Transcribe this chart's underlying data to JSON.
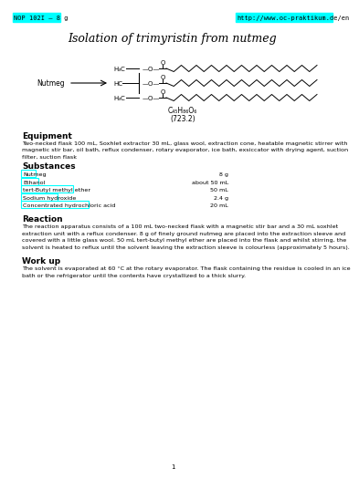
{
  "title": "Isolation of trimyristin from nutmeg",
  "header_left": "NOP 102I – 8 g",
  "header_right": "http://www.oc-praktikum.de/en",
  "header_bg": "#00ffff",
  "nutmeg_label": "Nutmeg",
  "formula_line1": "C₄₅H₈₆O₆",
  "formula_line2": "(723.2)",
  "equipment_title": "Equipment",
  "equipment_lines": [
    "Two-necked flask 100 mL, Soxhlet extractor 30 mL, glass wool, extraction cone, heatable magnetic stirrer with",
    "magnetic stir bar, oil bath, reflux condenser, rotary evaporator, ice bath, exsiccator with drying agent, suction",
    "filter, suction flask"
  ],
  "substances_title": "Substances",
  "substances": [
    {
      "name": "Nutmeg",
      "amount": "8 g"
    },
    {
      "name": "Ethanol",
      "amount": "about 50 mL"
    },
    {
      "name": "tert-Butyl methyl ether",
      "amount": "50 mL"
    },
    {
      "name": "Sodium hydroxide",
      "amount": "2.4 g"
    },
    {
      "name": "Concentrated hydrochloric acid",
      "amount": "20 mL"
    }
  ],
  "reaction_title": "Reaction",
  "reaction_lines": [
    "The reaction apparatus consists of a 100 mL two-necked flask with a magnetic stir bar and a 30 mL soxhlet",
    "extraction unit with a reflux condenser. 8 g of finely ground nutmeg are placed into the extraction sleeve and",
    "covered with a little glass wool. 50 mL tert-butyl methyl ether are placed into the flask and whilst stirring, the",
    "solvent is heated to reflux until the solvent leaving the extraction sleeve is colourless (approximately 5 hours)."
  ],
  "workup_title": "Work up",
  "workup_lines": [
    "The solvent is evaporated at 60 °C at the rotary evaporator. The flask containing the residue is cooled in an ice",
    "bath or the refrigerator until the contents have crystallized to a thick slurry."
  ],
  "page_number": "1",
  "bg_color": "#ffffff",
  "text_color": "#000000",
  "cyan_color": "#00ffff",
  "header_fontsize": 5,
  "title_fontsize": 9,
  "section_fontsize": 6.5,
  "body_fontsize": 4.6
}
